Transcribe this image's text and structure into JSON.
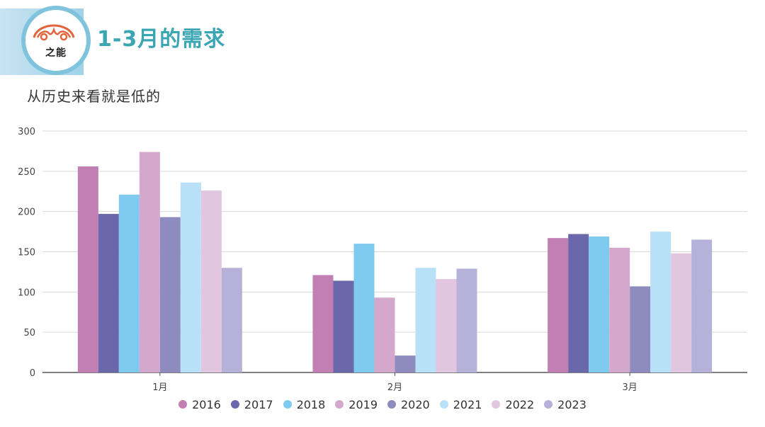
{
  "header": {
    "title": "1-3月的需求",
    "logo_text": "之能"
  },
  "subtitle": "从历史来看就是低的",
  "chart_data": {
    "type": "bar",
    "categories": [
      "1月",
      "2月",
      "3月"
    ],
    "ylim": [
      0,
      300
    ],
    "yticks": [
      0,
      50,
      100,
      150,
      200,
      250,
      300
    ],
    "grid": true,
    "legend_position": "bottom",
    "series": [
      {
        "name": "2016",
        "color": "#c17fb3",
        "values": [
          256,
          121,
          167
        ]
      },
      {
        "name": "2017",
        "color": "#6b67ab",
        "values": [
          197,
          114,
          172
        ]
      },
      {
        "name": "2018",
        "color": "#7ecbef",
        "values": [
          221,
          160,
          169
        ]
      },
      {
        "name": "2019",
        "color": "#d4a8cc",
        "values": [
          274,
          93,
          155
        ]
      },
      {
        "name": "2020",
        "color": "#8e8cbf",
        "values": [
          193,
          21,
          107
        ]
      },
      {
        "name": "2021",
        "color": "#b8e1f7",
        "values": [
          236,
          130,
          175
        ]
      },
      {
        "name": "2022",
        "color": "#e2c5de",
        "values": [
          226,
          116,
          148
        ]
      },
      {
        "name": "2023",
        "color": "#b5b1d8",
        "values": [
          130,
          129,
          165
        ]
      }
    ]
  }
}
